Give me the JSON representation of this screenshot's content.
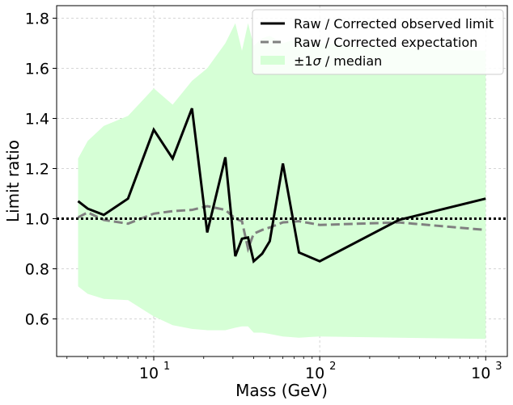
{
  "chart_data": {
    "type": "line",
    "title": "",
    "xlabel": "Mass (GeV)",
    "ylabel": "Limit ratio",
    "xscale": "log",
    "xlim": [
      2.6,
      1350
    ],
    "ylim": [
      0.45,
      1.85
    ],
    "grid": true,
    "legend_position": "top-right",
    "x_major_ticks": [
      {
        "value": 10,
        "base": "10",
        "exp": "1"
      },
      {
        "value": 100,
        "base": "10",
        "exp": "2"
      },
      {
        "value": 1000,
        "base": "10",
        "exp": "3"
      }
    ],
    "y_ticks": [
      {
        "value": 0.6,
        "label": "0.6"
      },
      {
        "value": 0.8,
        "label": "0.8"
      },
      {
        "value": 1.0,
        "label": "1.0"
      },
      {
        "value": 1.2,
        "label": "1.2"
      },
      {
        "value": 1.4,
        "label": "1.4"
      },
      {
        "value": 1.6,
        "label": "1.6"
      },
      {
        "value": 1.8,
        "label": "1.8"
      }
    ],
    "reference_line": {
      "y": 1.0,
      "style": "dotted",
      "color": "#000000"
    },
    "series": [
      {
        "name": "Raw / Corrected observed limit",
        "color": "#000000",
        "style": "solid",
        "x": [
          3.5,
          4,
          5,
          7,
          10,
          13,
          17,
          21,
          27,
          31,
          34,
          37,
          40,
          45,
          50,
          60,
          75,
          100,
          300,
          1000
        ],
        "y": [
          1.07,
          1.04,
          1.015,
          1.08,
          1.355,
          1.24,
          1.44,
          0.945,
          1.245,
          0.85,
          0.92,
          0.925,
          0.83,
          0.86,
          0.91,
          1.22,
          0.865,
          0.83,
          0.995,
          1.08
        ]
      },
      {
        "name": "Raw / Corrected expectation",
        "color": "#808080",
        "style": "dashed",
        "x": [
          3.5,
          4,
          5,
          7,
          10,
          13,
          17,
          21,
          27,
          31,
          34,
          37,
          40,
          45,
          50,
          60,
          75,
          100,
          300,
          1000
        ],
        "y": [
          1.005,
          1.025,
          0.995,
          0.98,
          1.02,
          1.03,
          1.035,
          1.05,
          1.035,
          1.0,
          0.99,
          0.88,
          0.94,
          0.955,
          0.965,
          0.985,
          0.99,
          0.975,
          0.985,
          0.955
        ]
      }
    ],
    "band": {
      "name": "±1σ / median",
      "legend_prefix": "±1",
      "legend_sigma": "σ",
      "legend_suffix": " / median",
      "color": "#d6ffd6",
      "x": [
        3.5,
        4,
        5,
        7,
        10,
        13,
        17,
        21,
        27,
        31,
        34,
        37,
        40,
        45,
        50,
        60,
        75,
        100,
        300,
        1000
      ],
      "upper": [
        1.24,
        1.31,
        1.37,
        1.41,
        1.52,
        1.455,
        1.55,
        1.6,
        1.7,
        1.78,
        1.67,
        1.78,
        1.69,
        1.72,
        1.73,
        1.7,
        1.72,
        1.7,
        1.68,
        1.67
      ],
      "lower": [
        0.73,
        0.7,
        0.68,
        0.675,
        0.61,
        0.575,
        0.56,
        0.555,
        0.555,
        0.565,
        0.57,
        0.57,
        0.545,
        0.545,
        0.54,
        0.53,
        0.525,
        0.53,
        0.525,
        0.52
      ]
    }
  }
}
